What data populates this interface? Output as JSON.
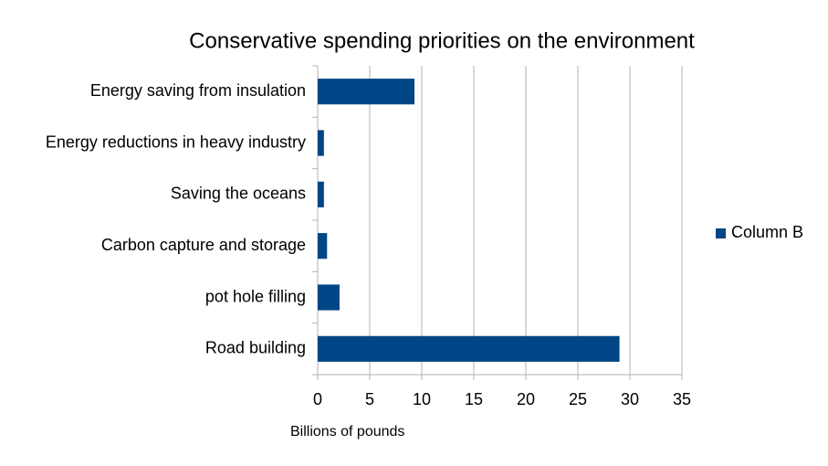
{
  "chart_data": {
    "type": "bar",
    "orientation": "horizontal",
    "title": "Conservative spending priorities on the environment",
    "x_label": "Billions of pounds",
    "categories": [
      "Energy saving from insulation",
      "Energy reductions in heavy industry",
      "Saving the oceans",
      "Carbon capture and storage",
      "pot hole filling",
      "Road building"
    ],
    "series": [
      {
        "name": "Column B",
        "color": "#004586",
        "values": [
          9.3,
          0.6,
          0.6,
          0.9,
          2.1,
          29
        ]
      }
    ],
    "xlim": [
      0,
      35
    ],
    "xticks": [
      0,
      5,
      10,
      15,
      20,
      25,
      30,
      35
    ],
    "grid": true,
    "legend": "right"
  }
}
